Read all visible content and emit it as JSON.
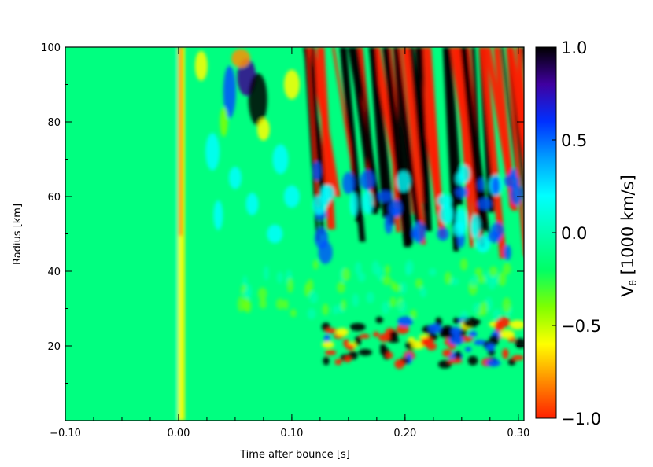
{
  "chart_data": {
    "type": "heatmap",
    "title": "",
    "xlabel": "Time after bounce [s]",
    "ylabel": "Radius [km]",
    "xlim": [
      -0.1,
      0.305
    ],
    "ylim": [
      0,
      100
    ],
    "xticks": [
      -0.1,
      0.0,
      0.1,
      0.2,
      0.3
    ],
    "xtick_labels": [
      "−0.10",
      "0.00",
      "0.10",
      "0.20",
      "0.30"
    ],
    "yticks": [
      20,
      40,
      60,
      80,
      100
    ],
    "ytick_labels": [
      "20",
      "40",
      "60",
      "80",
      "100"
    ],
    "colorbar": {
      "label_main": "V",
      "label_sub": "θ",
      "label_rest": " [1000 km/s]",
      "range": [
        -1.0,
        1.0
      ],
      "ticks": [
        -1.0,
        -0.5,
        0.0,
        0.5,
        1.0
      ],
      "tick_labels": [
        "−1.0",
        "−0.5",
        "0.0",
        "0.5",
        "1.0"
      ],
      "colormap": [
        "#ff2000",
        "#ff8c00",
        "#ffff00",
        "#7fff00",
        "#00ff66",
        "#00ffb0",
        "#00ffff",
        "#00a0ff",
        "#0030ff",
        "#4000a0",
        "#000000"
      ]
    },
    "grid": false,
    "legend": "none"
  }
}
